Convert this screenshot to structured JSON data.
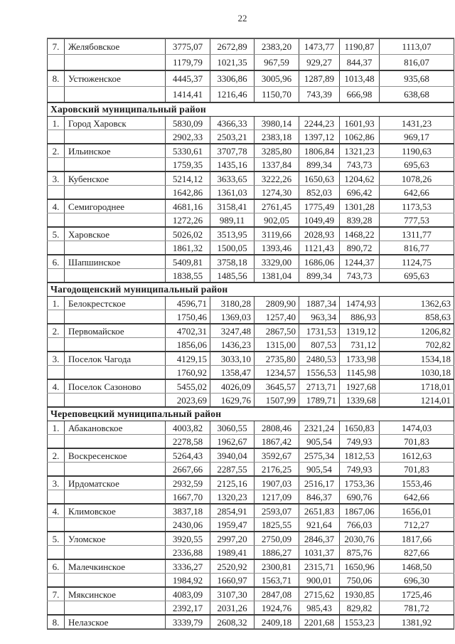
{
  "page": {
    "number": "22"
  },
  "table": {
    "sections": [
      {
        "header": null,
        "entries": [
          {
            "num": "7.",
            "name": "Желябовское",
            "row1": [
              "3775,07",
              "2672,89",
              "2383,20",
              "1473,77",
              "1190,87",
              "1113,07"
            ],
            "row2": [
              "1179,79",
              "1021,35",
              "967,59",
              "929,27",
              "844,37",
              "816,07"
            ]
          },
          {
            "num": "8.",
            "name": "Устюженское",
            "row1": [
              "4445,37",
              "3306,86",
              "3005,96",
              "1287,89",
              "1013,48",
              "935,68"
            ],
            "row2": [
              "1414,41",
              "1216,46",
              "1150,70",
              "743,39",
              "666,98",
              "638,68"
            ]
          }
        ]
      },
      {
        "header": "Харовский муниципальный район",
        "entries": [
          {
            "num": "1.",
            "name": "Город Харовск",
            "row1": [
              "5830,09",
              "4366,33",
              "3980,14",
              "2244,23",
              "1601,93",
              "1431,23"
            ],
            "row2": [
              "2902,33",
              "2503,21",
              "2383,18",
              "1397,12",
              "1062,86",
              "969,17"
            ]
          },
          {
            "num": "2.",
            "name": "Ильинское",
            "row1": [
              "5330,61",
              "3707,78",
              "3285,80",
              "1806,84",
              "1321,23",
              "1190,63"
            ],
            "row2": [
              "1759,35",
              "1435,16",
              "1337,84",
              "899,34",
              "743,73",
              "695,63"
            ]
          },
          {
            "num": "3.",
            "name": "Кубенское",
            "row1": [
              "5214,12",
              "3633,65",
              "3222,26",
              "1650,63",
              "1204,62",
              "1078,26"
            ],
            "row2": [
              "1642,86",
              "1361,03",
              "1274,30",
              "852,03",
              "696,42",
              "642,66"
            ]
          },
          {
            "num": "4.",
            "name": "Семигороднее",
            "row1": [
              "4681,16",
              "3158,41",
              "2761,45",
              "1775,49",
              "1301,28",
              "1173,53"
            ],
            "row2": [
              "1272,26",
              "989,11",
              "902,05",
              "1049,49",
              "839,28",
              "777,53"
            ]
          },
          {
            "num": "5.",
            "name": "Харовское",
            "row1": [
              "5026,02",
              "3513,95",
              "3119,66",
              "2028,93",
              "1468,22",
              "1311,77"
            ],
            "row2": [
              "1861,32",
              "1500,05",
              "1393,46",
              "1121,43",
              "890,72",
              "816,77"
            ]
          },
          {
            "num": "6.",
            "name": "Шапшинское",
            "row1": [
              "5409,81",
              "3758,18",
              "3329,00",
              "1686,06",
              "1244,37",
              "1124,75"
            ],
            "row2": [
              "1838,55",
              "1485,56",
              "1381,04",
              "899,34",
              "743,73",
              "695,63"
            ]
          }
        ]
      },
      {
        "header": "Чагодощенский муниципальный район",
        "entries": [
          {
            "num": "1.",
            "name": "Белокрестское",
            "row1": [
              "4596,71",
              "3180,28",
              "2809,90",
              "1887,34",
              "1474,93",
              "1362,63"
            ],
            "row2": [
              "1750,46",
              "1369,03",
              "1257,40",
              "963,34",
              "886,93",
              "858,63"
            ]
          },
          {
            "num": "2.",
            "name": "Первомайское",
            "row1": [
              "4702,31",
              "3247,48",
              "2867,50",
              "1731,53",
              "1319,12",
              "1206,82"
            ],
            "row2": [
              "1856,06",
              "1436,23",
              "1315,00",
              "807,53",
              "731,12",
              "702,82"
            ]
          },
          {
            "num": "3.",
            "name": "Поселок Чагода",
            "row1": [
              "4129,15",
              "3033,10",
              "2735,80",
              "2480,53",
              "1733,98",
              "1534,18"
            ],
            "row2": [
              "1760,92",
              "1358,47",
              "1234,57",
              "1556,53",
              "1145,98",
              "1030,18"
            ]
          },
          {
            "num": "4.",
            "name": "Поселок Сазоново",
            "row1": [
              "5455,02",
              "4026,09",
              "3645,57",
              "2713,71",
              "1927,68",
              "1718,01"
            ],
            "row2": [
              "2023,69",
              "1629,76",
              "1507,99",
              "1789,71",
              "1339,68",
              "1214,01"
            ]
          }
        ]
      },
      {
        "header": "Череповецкий муниципальный район",
        "entries": [
          {
            "num": "1.",
            "name": "Абакановское",
            "row1": [
              "4003,82",
              "3060,55",
              "2808,46",
              "2321,24",
              "1650,83",
              "1474,03"
            ],
            "row2": [
              "2278,58",
              "1962,67",
              "1867,42",
              "905,54",
              "749,93",
              "701,83"
            ]
          },
          {
            "num": "2.",
            "name": "Воскресенское",
            "row1": [
              "5264,43",
              "3940,04",
              "3592,67",
              "2575,34",
              "1812,53",
              "1612,63"
            ],
            "row2": [
              "2667,66",
              "2287,55",
              "2176,25",
              "905,54",
              "749,93",
              "701,83"
            ]
          },
          {
            "num": "3.",
            "name": "Ирдоматское",
            "row1": [
              "2932,59",
              "2125,16",
              "1907,03",
              "2516,17",
              "1753,36",
              "1553,46"
            ],
            "row2": [
              "1667,70",
              "1320,23",
              "1217,09",
              "846,37",
              "690,76",
              "642,66"
            ]
          },
          {
            "num": "4.",
            "name": "Климовское",
            "row1": [
              "3837,18",
              "2854,91",
              "2593,07",
              "2651,83",
              "1867,06",
              "1656,01"
            ],
            "row2": [
              "2430,06",
              "1959,47",
              "1825,55",
              "921,64",
              "766,03",
              "712,27"
            ]
          },
          {
            "num": "5.",
            "name": "Уломское",
            "row1": [
              "3920,55",
              "2997,20",
              "2750,09",
              "2846,37",
              "2030,76",
              "1817,66"
            ],
            "row2": [
              "2336,88",
              "1989,41",
              "1886,27",
              "1031,37",
              "875,76",
              "827,66"
            ]
          },
          {
            "num": "6.",
            "name": "Малечкинское",
            "row1": [
              "3336,27",
              "2520,92",
              "2300,81",
              "2315,71",
              "1650,96",
              "1468,50"
            ],
            "row2": [
              "1984,92",
              "1660,97",
              "1563,71",
              "900,01",
              "750,06",
              "696,30"
            ]
          },
          {
            "num": "7.",
            "name": "Мяксинское",
            "row1": [
              "4083,09",
              "3107,30",
              "2847,08",
              "2715,62",
              "1930,85",
              "1725,46"
            ],
            "row2": [
              "2392,17",
              "2031,26",
              "1924,76",
              "985,43",
              "829,82",
              "781,72"
            ]
          },
          {
            "num": "8.",
            "name": "Нелазское",
            "row1": [
              "3339,79",
              "2608,32",
              "2409,18",
              "2201,68",
              "1553,23",
              "1381,92"
            ],
            "row2": null
          }
        ]
      }
    ]
  }
}
